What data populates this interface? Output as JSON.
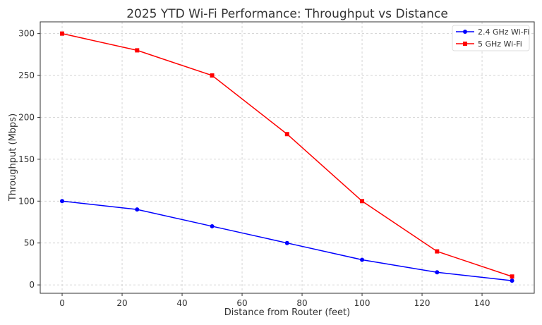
{
  "chart_data": {
    "type": "line",
    "title": "2025 YTD Wi-Fi Performance: Throughput vs Distance",
    "xlabel": "Distance from Router (feet)",
    "ylabel": "Throughput (Mbps)",
    "x": [
      0,
      25,
      50,
      75,
      100,
      125,
      150
    ],
    "xlim": [
      -7.3,
      157.4
    ],
    "ylim": [
      -10,
      314
    ],
    "xticks": [
      0,
      20,
      40,
      60,
      80,
      100,
      120,
      140
    ],
    "yticks": [
      0,
      50,
      100,
      150,
      200,
      250,
      300
    ],
    "grid": true,
    "legend": "top-right",
    "series": [
      {
        "name": "2.4 GHz Wi-Fi",
        "values": [
          100,
          90,
          70,
          50,
          30,
          15,
          5
        ],
        "color": "#0000ff",
        "marker": "circle"
      },
      {
        "name": "5 GHz Wi-Fi",
        "values": [
          300,
          280,
          250,
          180,
          100,
          40,
          10
        ],
        "color": "#ff0000",
        "marker": "square"
      }
    ]
  }
}
